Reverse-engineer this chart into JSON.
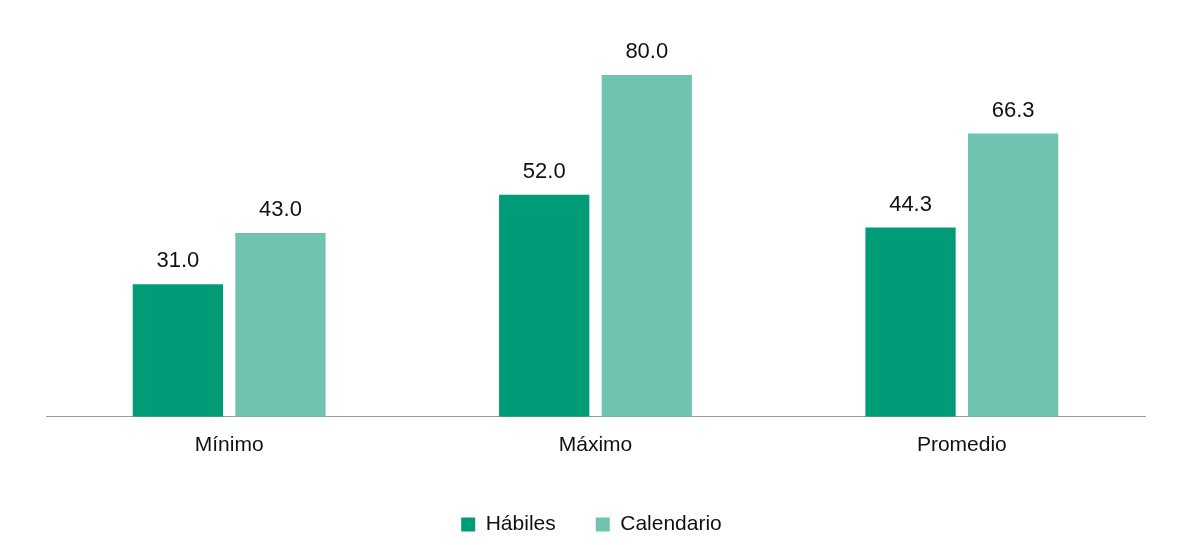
{
  "chart_data": {
    "type": "bar",
    "categories": [
      "Mínimo",
      "Máximo",
      "Promedio"
    ],
    "series": [
      {
        "name": "Hábiles",
        "color": "#009b77",
        "values": [
          31.0,
          52.0,
          44.3
        ],
        "value_labels": [
          "31.0",
          "52.0",
          "44.3"
        ]
      },
      {
        "name": "Calendario",
        "color": "#70c2b1",
        "values": [
          43.0,
          80.0,
          66.3
        ],
        "value_labels": [
          "43.0",
          "80.0",
          "66.3"
        ]
      }
    ],
    "tick_labels": "x",
    "grid": false,
    "legend": "bottom"
  }
}
